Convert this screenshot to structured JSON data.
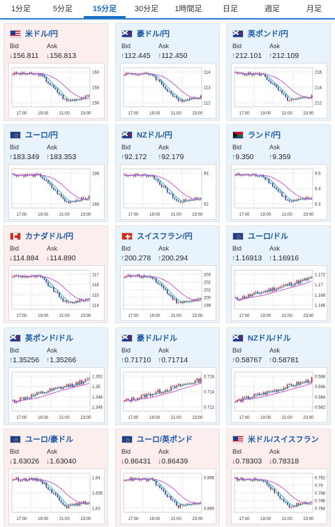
{
  "tabs": [
    "1分足",
    "5分足",
    "15分足",
    "30分足",
    "1時間足",
    "日足",
    "週足",
    "月足"
  ],
  "active_tab": 2,
  "labels": {
    "bid": "Bid",
    "ask": "Ask"
  },
  "colors": {
    "up": "#1c8a3e",
    "down": "#d32020",
    "ma_short": "#2aa8b0",
    "ma_long": "#c04ad0",
    "candle_up": "#d32020",
    "candle_down": "#1a3a9a"
  },
  "x_ticks": [
    "17:00",
    "19:00",
    "21:00",
    "23:00"
  ],
  "cards": [
    {
      "pair": "米ドル/円",
      "flag": "flag-us-jp-icon",
      "dir": "down",
      "bid": "156.811",
      "ask": "156.813",
      "yticks": [
        "160",
        "158",
        "156"
      ]
    },
    {
      "pair": "豪ドル/円",
      "flag": "flag-au-jp-icon",
      "dir": "up",
      "bid": "112.445",
      "ask": "112.450",
      "yticks": [
        "114",
        "113",
        "112"
      ]
    },
    {
      "pair": "英ポンド/円",
      "flag": "flag-gb-jp-icon",
      "dir": "up",
      "bid": "212.101",
      "ask": "212.109",
      "yticks": [
        "216",
        "214",
        "212"
      ]
    },
    {
      "pair": "ユーロ/円",
      "flag": "flag-eu-jp-icon",
      "dir": "up",
      "bid": "183.349",
      "ask": "183.353",
      "yticks": [
        "186",
        "184"
      ]
    },
    {
      "pair": "NZドル/円",
      "flag": "flag-nz-jp-icon",
      "dir": "up",
      "bid": "92.172",
      "ask": "92.179",
      "yticks": [
        "93",
        "92"
      ]
    },
    {
      "pair": "ランド/円",
      "flag": "flag-za-jp-icon",
      "dir": "up",
      "bid": "9.350",
      "ask": "9.359",
      "yticks": [
        "9.5",
        "9.4",
        "9.3"
      ]
    },
    {
      "pair": "カナダドル/円",
      "flag": "flag-ca-jp-icon",
      "dir": "down",
      "bid": "114.884",
      "ask": "114.890",
      "yticks": [
        "117",
        "116",
        "115",
        "114"
      ]
    },
    {
      "pair": "スイスフラン/円",
      "flag": "flag-ch-jp-icon",
      "dir": "up",
      "bid": "200.278",
      "ask": "200.294",
      "yticks": [
        "203",
        "202",
        "201",
        "200",
        "199"
      ]
    },
    {
      "pair": "ユーロ/ドル",
      "flag": "flag-eu-us-icon",
      "dir": "up",
      "bid": "1.16913",
      "ask": "1.16916",
      "yticks": [
        "1.172",
        "1.17",
        "1.168",
        "1.166"
      ]
    },
    {
      "pair": "英ポンド/ドル",
      "flag": "flag-gb-us-icon",
      "dir": "up",
      "bid": "1.35256",
      "ask": "1.35266",
      "yticks": [
        "1.352",
        "1.35",
        "1.348",
        "1.346"
      ]
    },
    {
      "pair": "豪ドル/ドル",
      "flag": "flag-au-us-icon",
      "dir": "up",
      "bid": "0.71710",
      "ask": "0.71714",
      "yticks": [
        "0.716",
        "0.714",
        "0.712"
      ]
    },
    {
      "pair": "NZドル/ドル",
      "flag": "flag-nz-us-icon",
      "dir": "up",
      "bid": "0.58767",
      "ask": "0.58781",
      "yticks": [
        "0.588",
        "0.586",
        "0.584",
        "0.582"
      ]
    },
    {
      "pair": "ユーロ/豪ドル",
      "flag": "flag-eu-au-icon",
      "dir": "down",
      "bid": "1.63026",
      "ask": "1.63040",
      "yticks": [
        "1.64",
        "1.635",
        "1.63"
      ]
    },
    {
      "pair": "ユーロ/英ポンド",
      "flag": "flag-eu-gb-icon",
      "dir": "down",
      "bid": "0.86431",
      "ask": "0.86439",
      "yticks": [
        "0.866",
        "0.865"
      ]
    },
    {
      "pair": "米ドル/スイスフラン",
      "flag": "flag-us-ch-icon",
      "dir": "down",
      "bid": "0.78303",
      "ask": "0.78318",
      "yticks": [
        "0.792",
        "0.79",
        "0.788",
        "0.786",
        "0.784"
      ]
    }
  ]
}
